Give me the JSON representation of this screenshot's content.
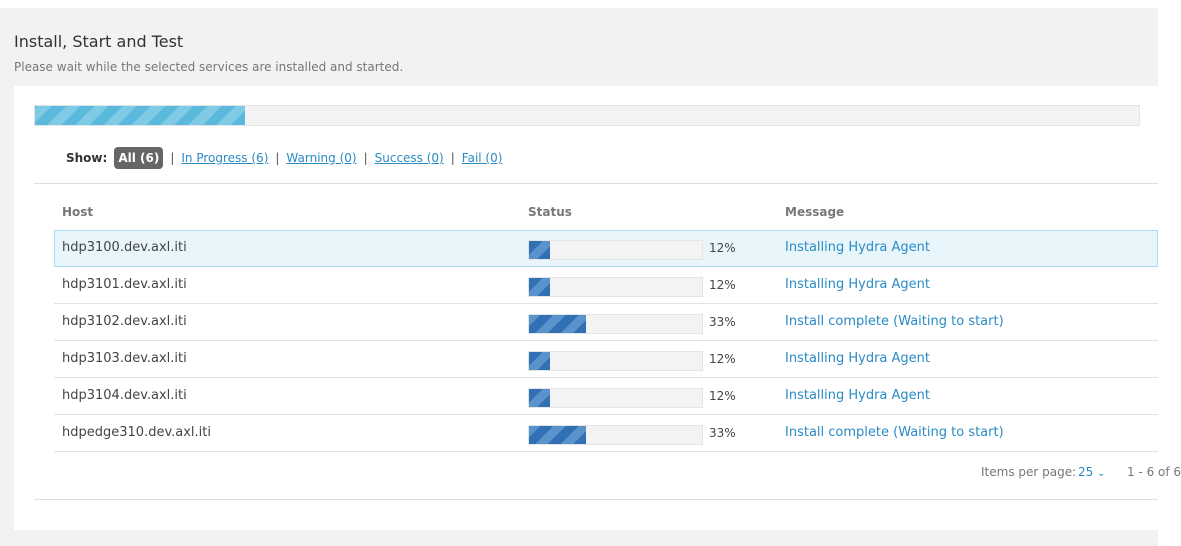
{
  "header": {
    "title": "Install, Start and Test",
    "subtitle": "Please wait while the selected services are installed and started."
  },
  "overall_progress": 19,
  "filters": {
    "label": "Show:",
    "items": [
      "All (6)",
      "In Progress (6)",
      "Warning (0)",
      "Success (0)",
      "Fail (0)"
    ]
  },
  "table": {
    "columns": [
      "Host",
      "Status",
      "Message"
    ],
    "rows": [
      {
        "host": "hdp3100.dev.axl.iti",
        "progress": {
          "value": 12,
          "label": "12%"
        },
        "message": "Installing Hydra Agent"
      },
      {
        "host": "hdp3101.dev.axl.iti",
        "progress": {
          "value": 12,
          "label": "12%"
        },
        "message": "Installing Hydra Agent"
      },
      {
        "host": "hdp3102.dev.axl.iti",
        "progress": {
          "value": 33,
          "label": "33%"
        },
        "message": "Install complete (Waiting to start)"
      },
      {
        "host": "hdp3103.dev.axl.iti",
        "progress": {
          "value": 12,
          "label": "12%"
        },
        "message": "Installing Hydra Agent"
      },
      {
        "host": "hdp3104.dev.axl.iti",
        "progress": {
          "value": 12,
          "label": "12%"
        },
        "message": "Installing Hydra Agent"
      },
      {
        "host": "hdpedge310.dev.axl.iti",
        "progress": {
          "value": 33,
          "label": "33%"
        },
        "message": "Install complete (Waiting to start)"
      }
    ]
  },
  "footer": {
    "items_per_page_label": "Items per page:",
    "items_per_page": "25",
    "range": "1 - 6 of 6"
  }
}
